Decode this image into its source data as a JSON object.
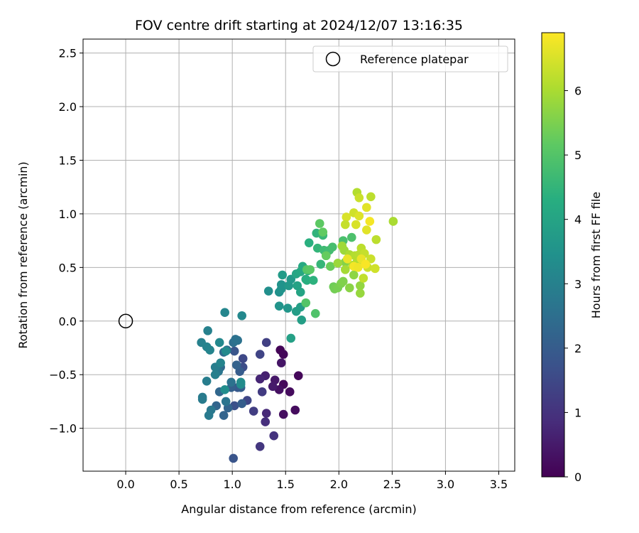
{
  "chart_data": {
    "type": "scatter",
    "title": "FOV centre drift starting at 2024/12/07 13:16:35",
    "xlabel": "Angular distance from reference (arcmin)",
    "ylabel": "Rotation from reference (arcmin)",
    "xlim": [
      -0.4,
      3.65
    ],
    "ylim": [
      -1.4,
      2.63
    ],
    "xticks": [
      0.0,
      0.5,
      1.0,
      1.5,
      2.0,
      2.5,
      3.0,
      3.5
    ],
    "xtick_labels": [
      "0.0",
      "0.5",
      "1.0",
      "1.5",
      "2.0",
      "2.5",
      "3.0",
      "3.5"
    ],
    "yticks": [
      -1.0,
      -0.5,
      0.0,
      0.5,
      1.0,
      1.5,
      2.0,
      2.5
    ],
    "ytick_labels": [
      "−1.0",
      "−0.5",
      "0.0",
      "0.5",
      "1.0",
      "1.5",
      "2.0",
      "2.5"
    ],
    "grid": true,
    "legend": {
      "position": "top-right",
      "entries": [
        "Reference platepar"
      ]
    },
    "reference_point": {
      "name": "Reference platepar",
      "x": 0.0,
      "y": 0.0,
      "marker": "open-circle"
    },
    "colorbar": {
      "label": "Hours from first FF file",
      "colormap": "viridis",
      "range": [
        0,
        6.9
      ],
      "ticks": [
        0,
        1,
        2,
        3,
        4,
        5,
        6
      ],
      "tick_labels": [
        "0",
        "1",
        "2",
        "3",
        "4",
        "5",
        "6"
      ]
    },
    "points": [
      {
        "x": 1.45,
        "y": -0.27,
        "c": 0.05
      },
      {
        "x": 1.48,
        "y": -0.31,
        "c": 0.1
      },
      {
        "x": 1.62,
        "y": -0.51,
        "c": 0.12
      },
      {
        "x": 1.48,
        "y": -0.59,
        "c": 0.15
      },
      {
        "x": 1.54,
        "y": -0.66,
        "c": 0.2
      },
      {
        "x": 1.59,
        "y": -0.83,
        "c": 0.22
      },
      {
        "x": 1.48,
        "y": -0.87,
        "c": 0.25
      },
      {
        "x": 1.44,
        "y": -0.64,
        "c": 0.3
      },
      {
        "x": 1.46,
        "y": -0.39,
        "c": 0.4
      },
      {
        "x": 1.4,
        "y": -0.55,
        "c": 0.45
      },
      {
        "x": 1.38,
        "y": -0.61,
        "c": 0.5
      },
      {
        "x": 1.31,
        "y": -0.51,
        "c": 0.6
      },
      {
        "x": 1.26,
        "y": -0.54,
        "c": 0.7
      },
      {
        "x": 1.32,
        "y": -0.86,
        "c": 0.8
      },
      {
        "x": 1.31,
        "y": -0.94,
        "c": 0.9
      },
      {
        "x": 1.39,
        "y": -1.07,
        "c": 1.0
      },
      {
        "x": 1.26,
        "y": -1.17,
        "c": 1.1
      },
      {
        "x": 1.28,
        "y": -0.66,
        "c": 1.2
      },
      {
        "x": 1.2,
        "y": -0.84,
        "c": 1.25
      },
      {
        "x": 1.32,
        "y": -0.2,
        "c": 1.3
      },
      {
        "x": 1.26,
        "y": -0.31,
        "c": 1.4
      },
      {
        "x": 1.14,
        "y": -0.74,
        "c": 1.45
      },
      {
        "x": 1.1,
        "y": -0.35,
        "c": 1.5
      },
      {
        "x": 1.1,
        "y": -0.43,
        "c": 1.6
      },
      {
        "x": 1.02,
        "y": -0.79,
        "c": 1.7
      },
      {
        "x": 1.01,
        "y": -1.28,
        "c": 1.8
      },
      {
        "x": 1.02,
        "y": -0.28,
        "c": 1.8
      },
      {
        "x": 1.05,
        "y": -0.62,
        "c": 1.9
      },
      {
        "x": 1.07,
        "y": -0.47,
        "c": 2.0
      },
      {
        "x": 1.08,
        "y": -0.62,
        "c": 2.0
      },
      {
        "x": 1.09,
        "y": -0.77,
        "c": 2.05
      },
      {
        "x": 0.99,
        "y": -0.62,
        "c": 2.1
      },
      {
        "x": 1.04,
        "y": -0.41,
        "c": 2.15
      },
      {
        "x": 0.96,
        "y": -0.81,
        "c": 2.2
      },
      {
        "x": 0.92,
        "y": -0.88,
        "c": 2.2
      },
      {
        "x": 0.85,
        "y": -0.79,
        "c": 2.25
      },
      {
        "x": 0.88,
        "y": -0.66,
        "c": 2.3
      },
      {
        "x": 0.89,
        "y": -0.43,
        "c": 2.35
      },
      {
        "x": 0.92,
        "y": -0.29,
        "c": 2.4
      },
      {
        "x": 0.95,
        "y": -0.27,
        "c": 2.45
      },
      {
        "x": 1.01,
        "y": -0.2,
        "c": 2.5
      },
      {
        "x": 1.03,
        "y": -0.17,
        "c": 2.55
      },
      {
        "x": 1.05,
        "y": -0.18,
        "c": 2.6
      },
      {
        "x": 0.99,
        "y": -0.57,
        "c": 2.6
      },
      {
        "x": 0.94,
        "y": -0.75,
        "c": 2.65
      },
      {
        "x": 0.87,
        "y": -0.47,
        "c": 2.7
      },
      {
        "x": 0.8,
        "y": -0.83,
        "c": 2.75
      },
      {
        "x": 0.78,
        "y": -0.88,
        "c": 2.8
      },
      {
        "x": 0.72,
        "y": -0.73,
        "c": 2.85
      },
      {
        "x": 0.72,
        "y": -0.71,
        "c": 2.85
      },
      {
        "x": 0.76,
        "y": -0.56,
        "c": 2.9
      },
      {
        "x": 0.84,
        "y": -0.43,
        "c": 2.9
      },
      {
        "x": 0.84,
        "y": -0.5,
        "c": 2.95
      },
      {
        "x": 0.77,
        "y": -0.09,
        "c": 3.0
      },
      {
        "x": 0.71,
        "y": -0.2,
        "c": 3.0
      },
      {
        "x": 0.76,
        "y": -0.24,
        "c": 3.05
      },
      {
        "x": 0.79,
        "y": -0.27,
        "c": 3.1
      },
      {
        "x": 0.89,
        "y": -0.39,
        "c": 3.1
      },
      {
        "x": 0.93,
        "y": 0.08,
        "c": 3.15
      },
      {
        "x": 1.09,
        "y": 0.05,
        "c": 3.2
      },
      {
        "x": 0.88,
        "y": -0.2,
        "c": 3.2
      },
      {
        "x": 0.94,
        "y": -0.28,
        "c": 3.25
      },
      {
        "x": 1.08,
        "y": -0.57,
        "c": 3.3
      },
      {
        "x": 1.08,
        "y": -0.59,
        "c": 3.3
      },
      {
        "x": 0.93,
        "y": -0.64,
        "c": 3.35
      },
      {
        "x": 1.34,
        "y": 0.28,
        "c": 3.4
      },
      {
        "x": 1.44,
        "y": 0.27,
        "c": 3.45
      },
      {
        "x": 1.46,
        "y": 0.3,
        "c": 3.5
      },
      {
        "x": 1.46,
        "y": 0.34,
        "c": 3.5
      },
      {
        "x": 1.44,
        "y": 0.14,
        "c": 3.55
      },
      {
        "x": 1.52,
        "y": 0.12,
        "c": 3.6
      },
      {
        "x": 1.53,
        "y": 0.33,
        "c": 3.65
      },
      {
        "x": 1.55,
        "y": 0.39,
        "c": 3.7
      },
      {
        "x": 1.47,
        "y": 0.43,
        "c": 3.75
      },
      {
        "x": 1.6,
        "y": 0.09,
        "c": 3.8
      },
      {
        "x": 1.64,
        "y": 0.13,
        "c": 3.85
      },
      {
        "x": 1.65,
        "y": 0.01,
        "c": 3.85
      },
      {
        "x": 1.55,
        "y": -0.16,
        "c": 3.9
      },
      {
        "x": 1.61,
        "y": 0.33,
        "c": 3.95
      },
      {
        "x": 1.64,
        "y": 0.27,
        "c": 4.0
      },
      {
        "x": 1.6,
        "y": 0.44,
        "c": 4.05
      },
      {
        "x": 1.64,
        "y": 0.46,
        "c": 4.1
      },
      {
        "x": 1.66,
        "y": 0.51,
        "c": 4.15
      },
      {
        "x": 1.69,
        "y": 0.39,
        "c": 4.2
      },
      {
        "x": 1.71,
        "y": 0.47,
        "c": 4.25
      },
      {
        "x": 1.7,
        "y": 0.38,
        "c": 4.3
      },
      {
        "x": 1.72,
        "y": 0.73,
        "c": 4.35
      },
      {
        "x": 1.76,
        "y": 0.38,
        "c": 4.4
      },
      {
        "x": 1.79,
        "y": 0.82,
        "c": 4.45
      },
      {
        "x": 1.8,
        "y": 0.68,
        "c": 4.5
      },
      {
        "x": 1.83,
        "y": 0.53,
        "c": 4.55
      },
      {
        "x": 1.85,
        "y": 0.8,
        "c": 4.6
      },
      {
        "x": 1.88,
        "y": 0.61,
        "c": 4.65
      },
      {
        "x": 1.86,
        "y": 0.66,
        "c": 4.7
      },
      {
        "x": 1.91,
        "y": 0.66,
        "c": 4.75
      },
      {
        "x": 1.94,
        "y": 0.69,
        "c": 4.8
      },
      {
        "x": 2.04,
        "y": 0.75,
        "c": 4.85
      },
      {
        "x": 2.12,
        "y": 0.78,
        "c": 4.9
      },
      {
        "x": 1.78,
        "y": 0.07,
        "c": 4.95
      },
      {
        "x": 1.69,
        "y": 0.17,
        "c": 5.0
      },
      {
        "x": 1.7,
        "y": 0.48,
        "c": 5.05
      },
      {
        "x": 1.73,
        "y": 0.48,
        "c": 5.1
      },
      {
        "x": 1.82,
        "y": 0.91,
        "c": 5.15
      },
      {
        "x": 1.85,
        "y": 0.83,
        "c": 5.2
      },
      {
        "x": 1.88,
        "y": 0.61,
        "c": 5.25
      },
      {
        "x": 1.92,
        "y": 0.51,
        "c": 5.3
      },
      {
        "x": 1.95,
        "y": 0.32,
        "c": 5.35
      },
      {
        "x": 1.96,
        "y": 0.3,
        "c": 5.4
      },
      {
        "x": 1.99,
        "y": 0.31,
        "c": 5.45
      },
      {
        "x": 2.02,
        "y": 0.35,
        "c": 5.5
      },
      {
        "x": 2.04,
        "y": 0.37,
        "c": 5.55
      },
      {
        "x": 2.06,
        "y": 0.55,
        "c": 5.6
      },
      {
        "x": 2.1,
        "y": 0.31,
        "c": 5.65
      },
      {
        "x": 2.14,
        "y": 0.43,
        "c": 5.7
      },
      {
        "x": 2.2,
        "y": 0.33,
        "c": 5.75
      },
      {
        "x": 2.2,
        "y": 0.26,
        "c": 5.8
      },
      {
        "x": 2.05,
        "y": 0.66,
        "c": 5.85
      },
      {
        "x": 1.99,
        "y": 0.54,
        "c": 5.85
      },
      {
        "x": 2.03,
        "y": 0.7,
        "c": 5.9
      },
      {
        "x": 2.06,
        "y": 0.48,
        "c": 5.95
      },
      {
        "x": 2.1,
        "y": 0.62,
        "c": 6.0
      },
      {
        "x": 2.13,
        "y": 0.52,
        "c": 6.05
      },
      {
        "x": 2.15,
        "y": 0.61,
        "c": 6.1
      },
      {
        "x": 2.17,
        "y": 0.55,
        "c": 6.1
      },
      {
        "x": 2.19,
        "y": 0.62,
        "c": 6.15
      },
      {
        "x": 2.21,
        "y": 0.68,
        "c": 6.2
      },
      {
        "x": 2.23,
        "y": 0.4,
        "c": 6.25
      },
      {
        "x": 2.24,
        "y": 0.63,
        "c": 6.3
      },
      {
        "x": 2.27,
        "y": 0.5,
        "c": 6.35
      },
      {
        "x": 2.3,
        "y": 0.58,
        "c": 6.35
      },
      {
        "x": 2.34,
        "y": 0.49,
        "c": 6.4
      },
      {
        "x": 2.35,
        "y": 0.76,
        "c": 6.2
      },
      {
        "x": 2.51,
        "y": 0.93,
        "c": 6.0
      },
      {
        "x": 2.17,
        "y": 1.2,
        "c": 6.1
      },
      {
        "x": 2.19,
        "y": 1.15,
        "c": 6.35
      },
      {
        "x": 2.3,
        "y": 1.16,
        "c": 6.2
      },
      {
        "x": 2.26,
        "y": 1.06,
        "c": 6.6
      },
      {
        "x": 2.14,
        "y": 1.01,
        "c": 6.4
      },
      {
        "x": 2.07,
        "y": 0.97,
        "c": 6.5
      },
      {
        "x": 2.19,
        "y": 0.98,
        "c": 6.55
      },
      {
        "x": 2.16,
        "y": 0.9,
        "c": 6.5
      },
      {
        "x": 2.06,
        "y": 0.9,
        "c": 6.3
      },
      {
        "x": 2.26,
        "y": 0.85,
        "c": 6.6
      },
      {
        "x": 2.29,
        "y": 0.93,
        "c": 6.8
      },
      {
        "x": 2.08,
        "y": 0.58,
        "c": 6.7
      },
      {
        "x": 2.14,
        "y": 0.51,
        "c": 6.8
      },
      {
        "x": 2.18,
        "y": 0.5,
        "c": 6.75
      },
      {
        "x": 2.21,
        "y": 0.58,
        "c": 6.7
      },
      {
        "x": 2.25,
        "y": 0.53,
        "c": 6.85
      }
    ]
  }
}
